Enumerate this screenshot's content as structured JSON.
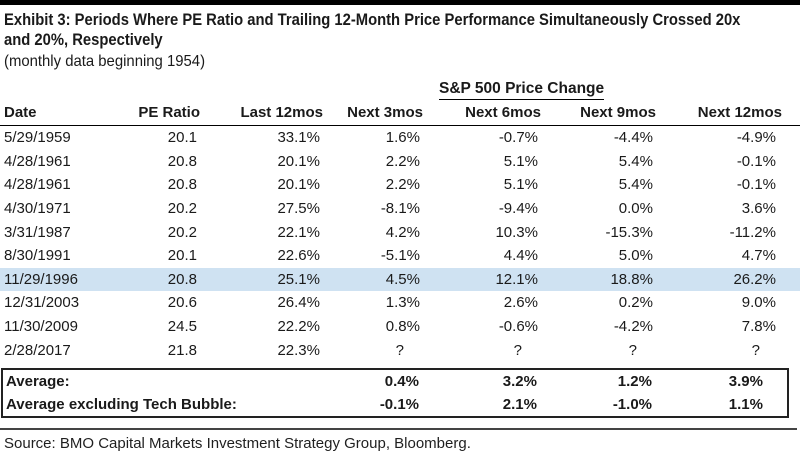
{
  "header": {
    "title_line1": "Exhibit 3: Periods Where PE Ratio and Trailing 12-Month Price Performance Simultaneously Crossed 20x",
    "title_line2": "and 20%, Respectively",
    "subtitle": "(monthly data beginning 1954)"
  },
  "colors": {
    "highlight_row": "#cfe2f2",
    "text": "#1a1a1a",
    "top_rule": "#000000",
    "box_border": "#222222",
    "source_rule": "#444444"
  },
  "chart_data": {
    "type": "table",
    "group_header": "S&P 500 Price Change",
    "group_header_spans_columns": [
      "Next 3mos",
      "Next 6mos",
      "Next 9mos",
      "Next 12mos"
    ],
    "columns": [
      "Date",
      "PE Ratio",
      "Last 12mos",
      "Next 3mos",
      "Next 6mos",
      "Next 9mos",
      "Next 12mos"
    ],
    "rows": [
      [
        "5/29/1959",
        "20.1",
        "33.1%",
        "1.6%",
        "-0.7%",
        "-4.4%",
        "-4.9%"
      ],
      [
        "4/28/1961",
        "20.8",
        "20.1%",
        "2.2%",
        "5.1%",
        "5.4%",
        "-0.1%"
      ],
      [
        "4/28/1961",
        "20.8",
        "20.1%",
        "2.2%",
        "5.1%",
        "5.4%",
        "-0.1%"
      ],
      [
        "4/30/1971",
        "20.2",
        "27.5%",
        "-8.1%",
        "-9.4%",
        "0.0%",
        "3.6%"
      ],
      [
        "3/31/1987",
        "20.2",
        "22.1%",
        "4.2%",
        "10.3%",
        "-15.3%",
        "-11.2%"
      ],
      [
        "8/30/1991",
        "20.1",
        "22.6%",
        "-5.1%",
        "4.4%",
        "5.0%",
        "4.7%"
      ],
      [
        "11/29/1996",
        "20.8",
        "25.1%",
        "4.5%",
        "12.1%",
        "18.8%",
        "26.2%"
      ],
      [
        "12/31/2003",
        "20.6",
        "26.4%",
        "1.3%",
        "2.6%",
        "0.2%",
        "9.0%"
      ],
      [
        "11/30/2009",
        "24.5",
        "22.2%",
        "0.8%",
        "-0.6%",
        "-4.2%",
        "7.8%"
      ],
      [
        "2/28/2017",
        "21.8",
        "22.3%",
        "?",
        "?",
        "?",
        "?"
      ]
    ],
    "highlighted_row_index": 6,
    "summary_rows": [
      {
        "label": "Average:",
        "values": [
          "0.4%",
          "3.2%",
          "1.2%",
          "3.9%"
        ]
      },
      {
        "label": "Average excluding Tech Bubble:",
        "values": [
          "-0.1%",
          "2.1%",
          "-1.0%",
          "1.1%"
        ]
      }
    ],
    "source": "Source: BMO Capital Markets Investment Strategy Group, Bloomberg."
  }
}
